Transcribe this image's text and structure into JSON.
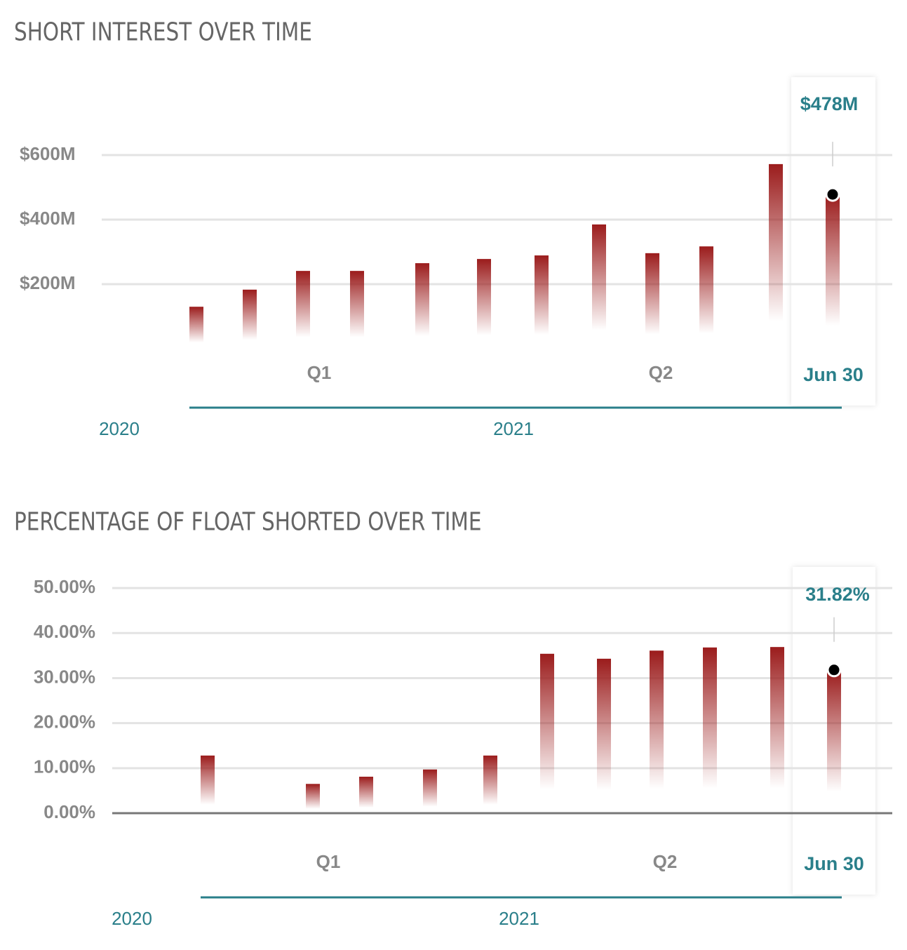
{
  "chart_data": [
    {
      "type": "bar",
      "title": "SHORT INTEREST OVER TIME",
      "categories": [
        null,
        null,
        null,
        null,
        null,
        null,
        null,
        null,
        null,
        null,
        null,
        null
      ],
      "values": [
        130,
        183,
        241,
        241,
        265,
        278,
        289,
        385,
        296,
        317,
        572,
        478
      ],
      "value_labels": [
        null,
        null,
        null,
        null,
        null,
        null,
        null,
        null,
        null,
        null,
        null,
        "$478M"
      ],
      "color": "#9b1c1c",
      "highlight_color": "#2a7f8a",
      "ylim": [
        0,
        800
      ],
      "yticks": [
        {
          "value": 200,
          "label": "$200M"
        },
        {
          "value": 400,
          "label": "$400M"
        },
        {
          "value": 600,
          "label": "$600M"
        }
      ],
      "grid": true,
      "period_labels": [
        "Q1",
        "Q2"
      ],
      "highlight_label": "Jun 30",
      "year_labels": [
        "2020",
        "2021"
      ]
    },
    {
      "type": "bar",
      "title": "PERCENTAGE OF FLOAT SHORTED OVER TIME",
      "categories": [
        null,
        null,
        null,
        null,
        null,
        null,
        null,
        null,
        null,
        null,
        null,
        null
      ],
      "values": [
        12.8,
        null,
        6.5,
        8.1,
        9.7,
        12.8,
        35.4,
        34.3,
        36.1,
        36.8,
        36.9,
        31.82
      ],
      "value_labels": [
        null,
        null,
        null,
        null,
        null,
        null,
        null,
        null,
        null,
        null,
        null,
        "31.82%"
      ],
      "color": "#9b1c1c",
      "highlight_color": "#2a7f8a",
      "ylim": [
        0,
        55
      ],
      "yticks": [
        {
          "value": 0,
          "label": "0.00%"
        },
        {
          "value": 10,
          "label": "10.00%"
        },
        {
          "value": 20,
          "label": "20.00%"
        },
        {
          "value": 30,
          "label": "30.00%"
        },
        {
          "value": 40,
          "label": "40.00%"
        },
        {
          "value": 50,
          "label": "50.00%"
        }
      ],
      "grid": true,
      "period_labels": [
        "Q1",
        "Q2"
      ],
      "highlight_label": "Jun 30",
      "year_labels": [
        "2020",
        "2021"
      ]
    }
  ]
}
